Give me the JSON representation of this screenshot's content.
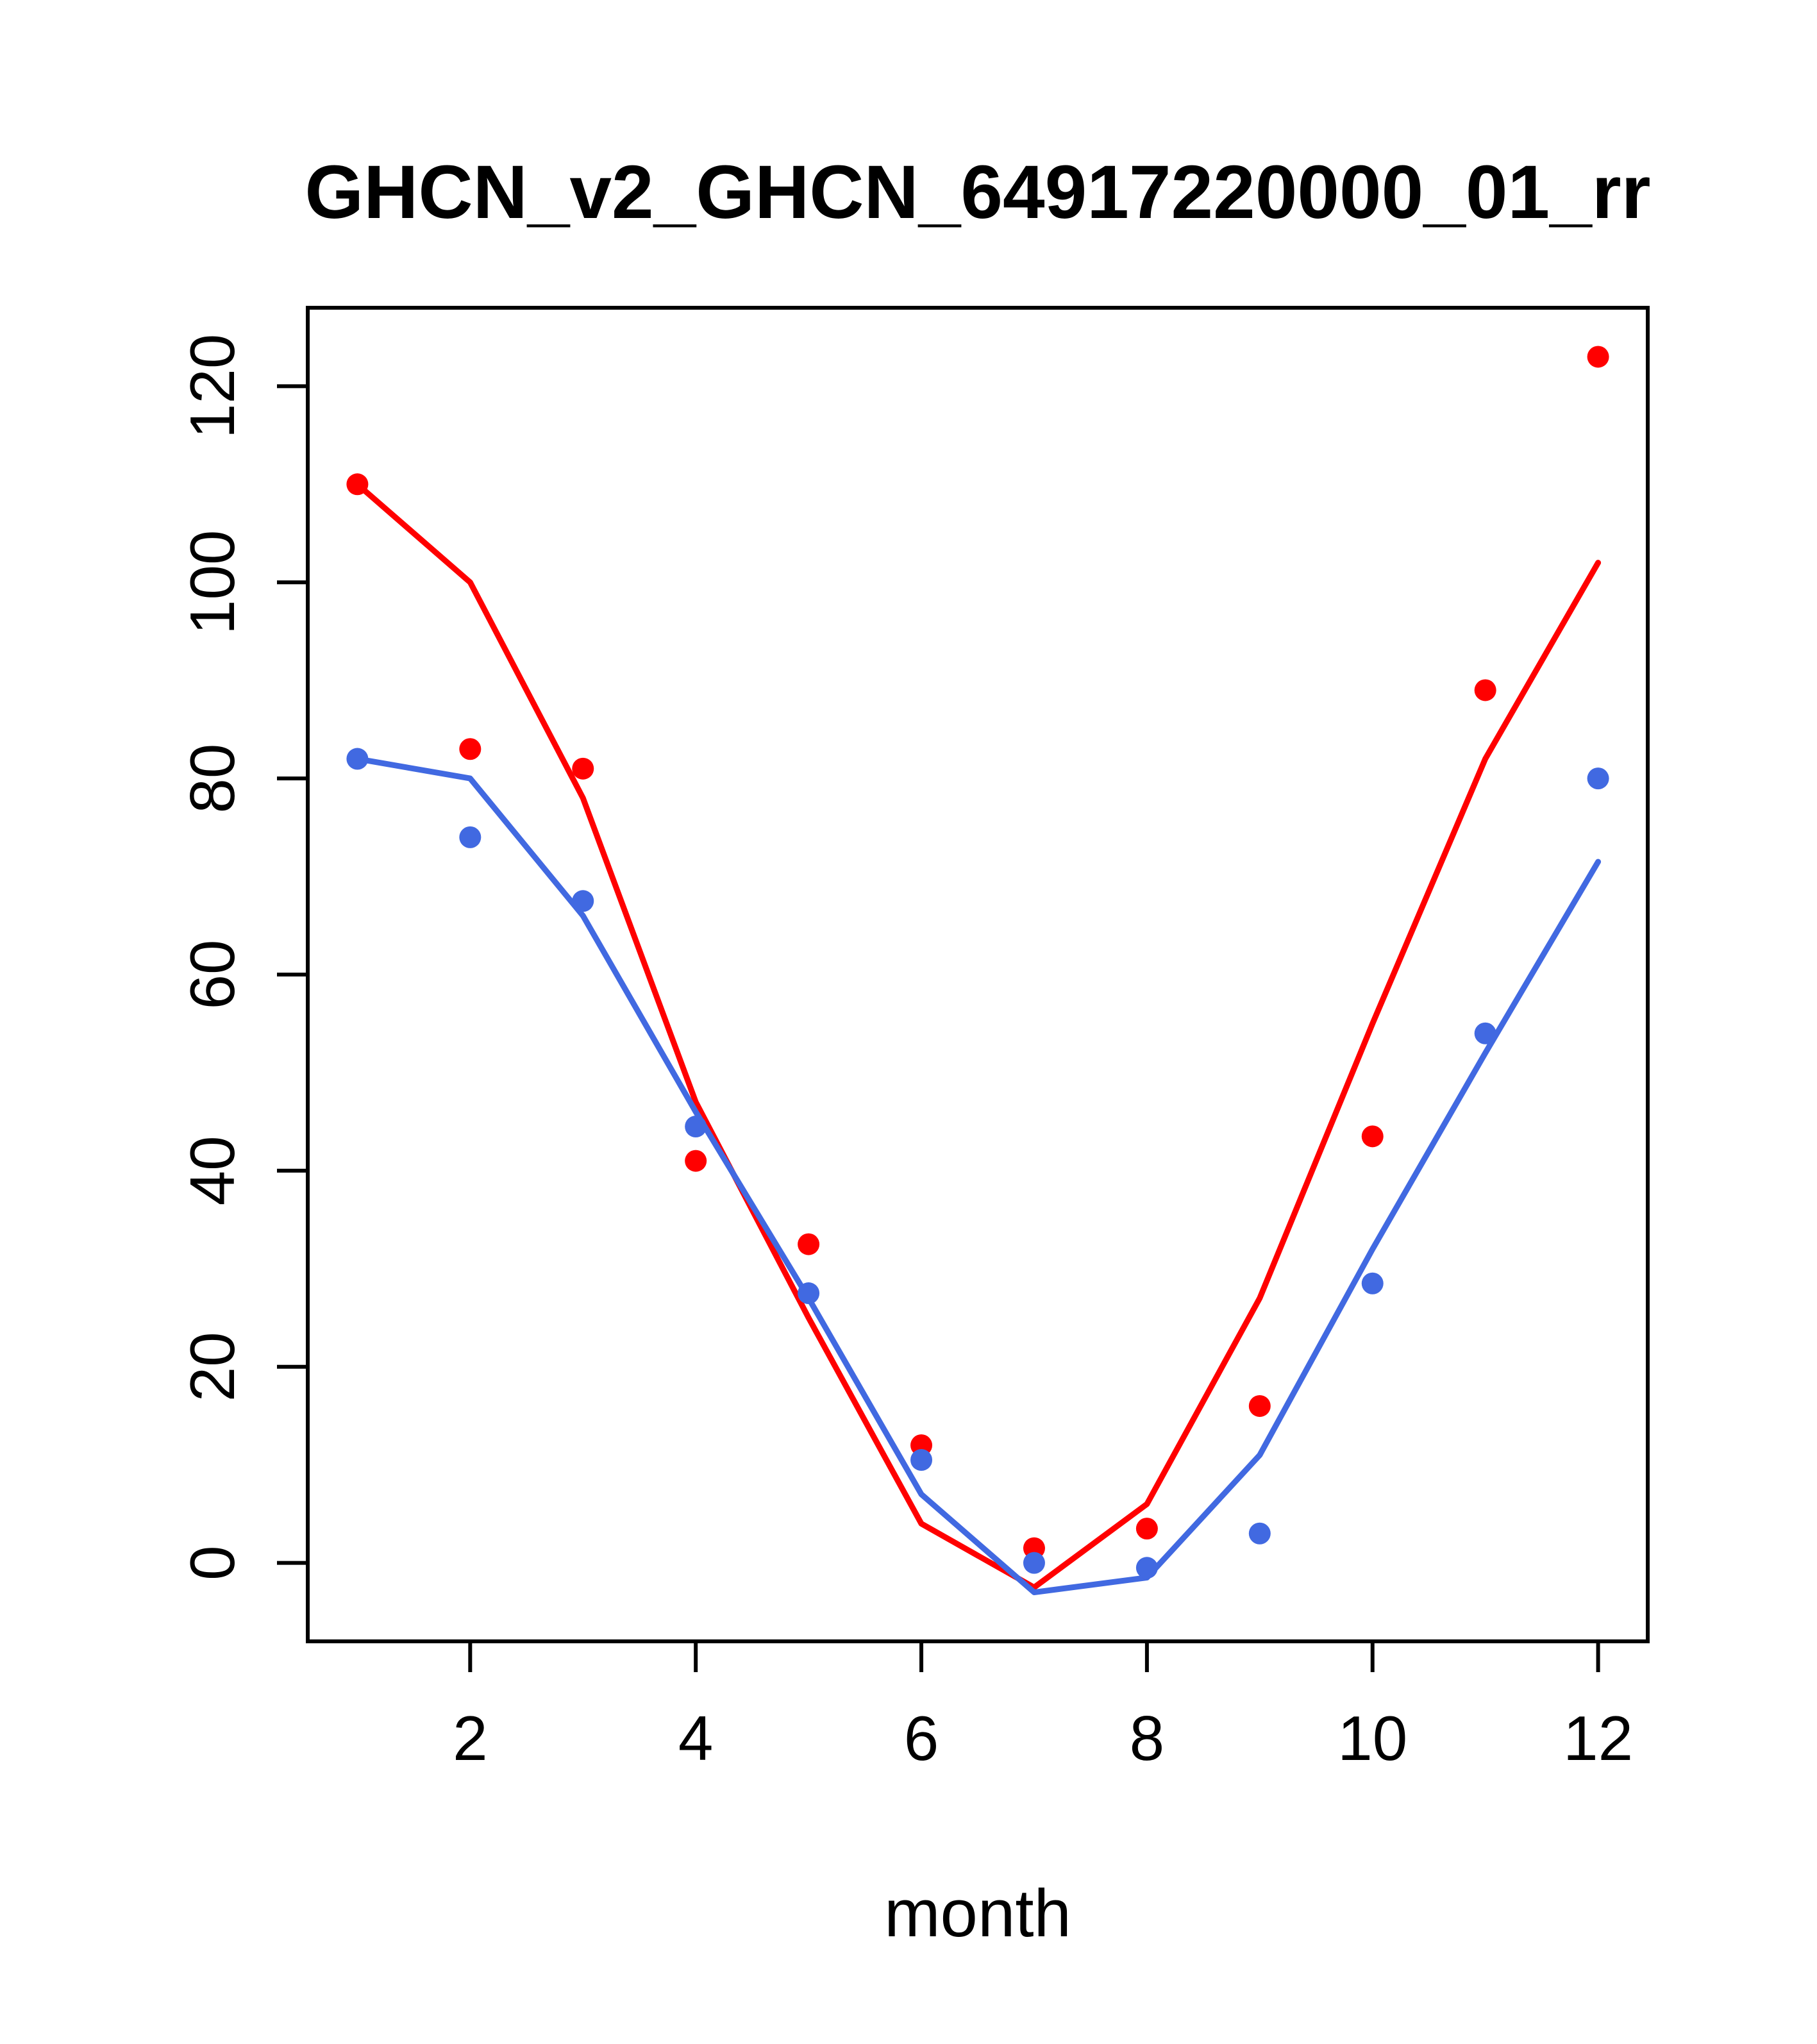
{
  "chart_data": {
    "type": "line",
    "title": "GHCN_v2_GHCN_64917220000_01_rr",
    "xlabel": "month",
    "ylabel": "",
    "x": [
      1,
      2,
      3,
      4,
      5,
      6,
      7,
      8,
      9,
      10,
      11,
      12
    ],
    "xticks": [
      2,
      4,
      6,
      8,
      10,
      12
    ],
    "yticks": [
      0,
      20,
      40,
      60,
      80,
      100,
      120
    ],
    "xlim": [
      0.56,
      12.44
    ],
    "ylim": [
      -8,
      128
    ],
    "grid": false,
    "legend": "none",
    "colors": {
      "red": "#ff0000",
      "blue": "#4169e1"
    },
    "series": [
      {
        "name": "red-line",
        "mark": "line",
        "color": "#ff0000",
        "values": [
          110,
          100,
          78,
          47,
          25,
          4,
          -2.5,
          6,
          27,
          55,
          82,
          102
        ]
      },
      {
        "name": "blue-line",
        "mark": "line",
        "color": "#4169e1",
        "values": [
          82,
          80,
          66,
          46,
          27,
          7,
          -3,
          -1.5,
          11,
          32,
          52,
          71.5
        ]
      },
      {
        "name": "red-points",
        "mark": "points",
        "color": "#ff0000",
        "values": [
          110,
          83,
          81,
          41,
          32.5,
          12,
          1.5,
          3.5,
          16,
          43.5,
          89,
          123
        ]
      },
      {
        "name": "blue-points",
        "mark": "points",
        "color": "#4169e1",
        "values": [
          82,
          74,
          67.5,
          44.5,
          27.5,
          10.5,
          0,
          -0.5,
          3,
          28.5,
          54,
          80
        ]
      }
    ]
  }
}
